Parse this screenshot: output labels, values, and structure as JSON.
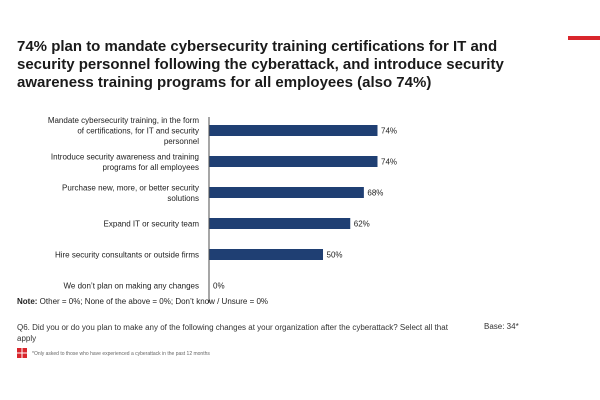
{
  "colors": {
    "accent": "#d9262c",
    "bar": "#1f3f73",
    "axis": "#222222"
  },
  "title": "74% plan to mandate cybersecurity training certifications for IT and security personnel following the cyberattack, and introduce security awareness training programs for all employees (also 74%)",
  "note": {
    "label": "Note:",
    "text": " Other = 0%; None of the above = 0%; Don’t know / Unsure = 0%"
  },
  "question": "Q6.  Did you or do you plan to make any of the following changes at your organization after the cyberattack? Select all that apply",
  "base": "Base: 34*",
  "footnote": "*Only asked to those who have experienced a cyberattack in the past 12 months",
  "logo_icon": "company-logo-icon",
  "page_number": "",
  "chart_data": {
    "type": "bar",
    "orientation": "horizontal",
    "categories": [
      [
        "Mandate cybersecurity training, in the form",
        "of certifications, for IT and security",
        "personnel"
      ],
      [
        "Introduce security awareness and training",
        "programs for all employees"
      ],
      [
        "Purchase new, more, or better security",
        "solutions"
      ],
      [
        "Expand IT or security team"
      ],
      [
        "Hire security consultants or outside firms"
      ],
      [
        "We don’t plan on making any changes"
      ]
    ],
    "values": [
      74,
      74,
      68,
      62,
      50,
      0
    ],
    "value_labels": [
      "74%",
      "74%",
      "68%",
      "62%",
      "50%",
      "0%"
    ],
    "xlim": [
      0,
      100
    ],
    "grid": false,
    "legend": "none"
  }
}
